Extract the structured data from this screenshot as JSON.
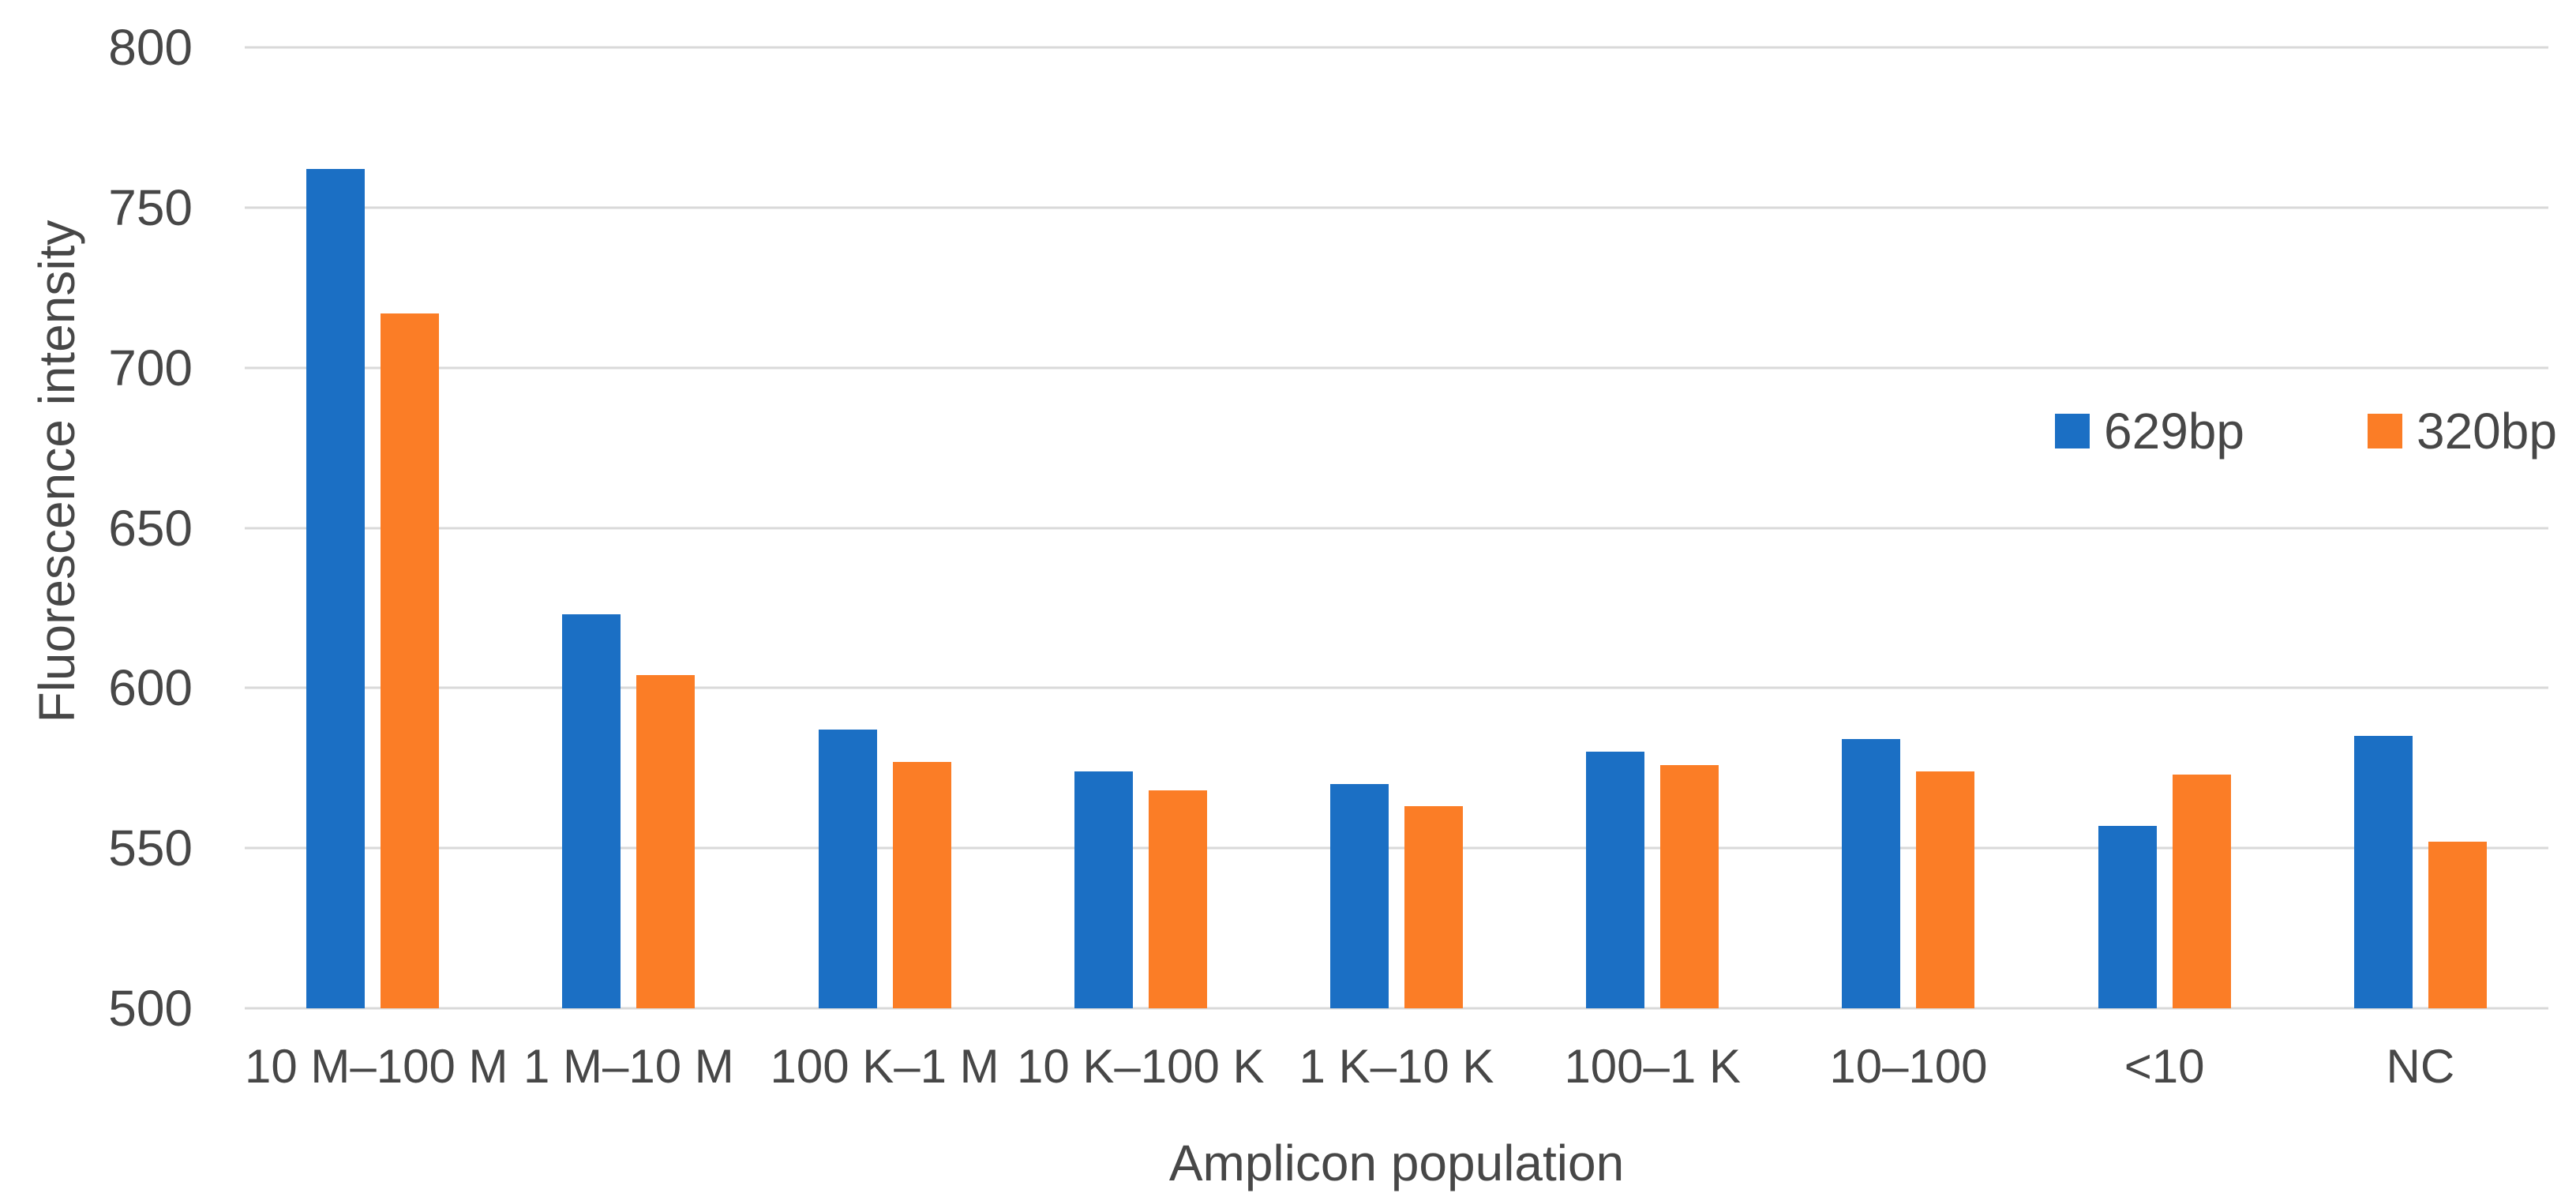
{
  "chart_data": {
    "type": "bar",
    "title": "",
    "xlabel": "Amplicon population",
    "ylabel": "Fluorescence intensity",
    "categories": [
      "10 M–100 M",
      "1 M–10 M",
      "100 K–1 M",
      "10 K–100 K",
      "1 K–10 K",
      "100–1 K",
      "10–100",
      "<10",
      "NC"
    ],
    "series": [
      {
        "name": "629bp",
        "color": "#1b6fc4",
        "values": [
          762,
          623,
          587,
          574,
          570,
          580,
          584,
          557,
          585
        ]
      },
      {
        "name": "320bp",
        "color": "#fb7d26",
        "values": [
          717,
          604,
          577,
          568,
          563,
          576,
          574,
          573,
          552
        ]
      }
    ],
    "ylim": [
      500,
      800
    ],
    "yticks": [
      800,
      750,
      700,
      650,
      600,
      550,
      500
    ],
    "grid": true,
    "gridline_color": "#d9d9d9",
    "text_color": "#474747",
    "background": "#ffffff",
    "legend_position": "inside-right"
  }
}
